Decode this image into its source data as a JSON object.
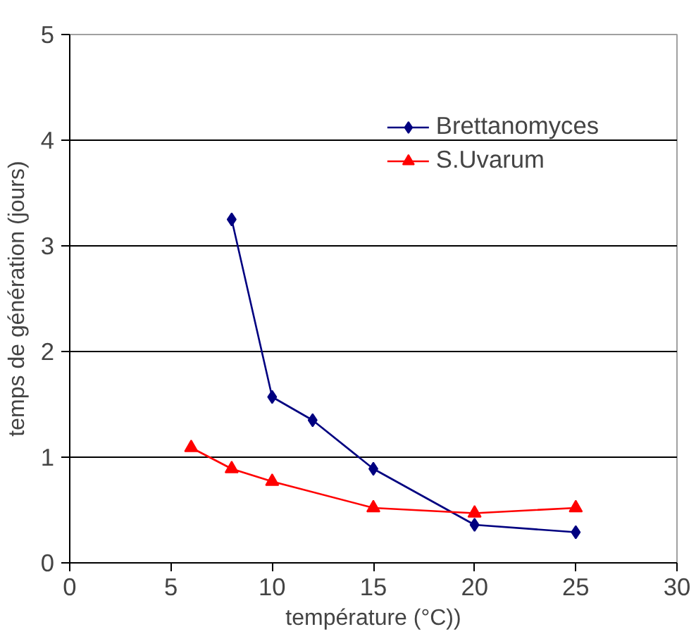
{
  "chart_data": {
    "type": "line",
    "xlabel": "température (°C))",
    "ylabel": "temps de génération (jours)",
    "xlim": [
      0,
      30
    ],
    "xticks": [
      0,
      5,
      10,
      15,
      20,
      25,
      30
    ],
    "ylim": [
      0,
      5
    ],
    "yticks": [
      0,
      1,
      2,
      3,
      4,
      5
    ],
    "grid": "y",
    "legend": "top right",
    "line_style": "solid",
    "series": [
      {
        "name": "Brettanomyces",
        "color": "#000080",
        "marker": "diamond",
        "x": [
          8,
          10,
          12,
          15,
          20,
          25
        ],
        "values": [
          3.25,
          1.57,
          1.35,
          0.89,
          0.36,
          0.29
        ]
      },
      {
        "name": "S.Uvarum",
        "color": "#ff0000",
        "marker": "triangle",
        "x": [
          6,
          8,
          10,
          15,
          20,
          25
        ],
        "values": [
          1.09,
          0.89,
          0.77,
          0.52,
          0.47,
          0.52
        ]
      }
    ]
  }
}
